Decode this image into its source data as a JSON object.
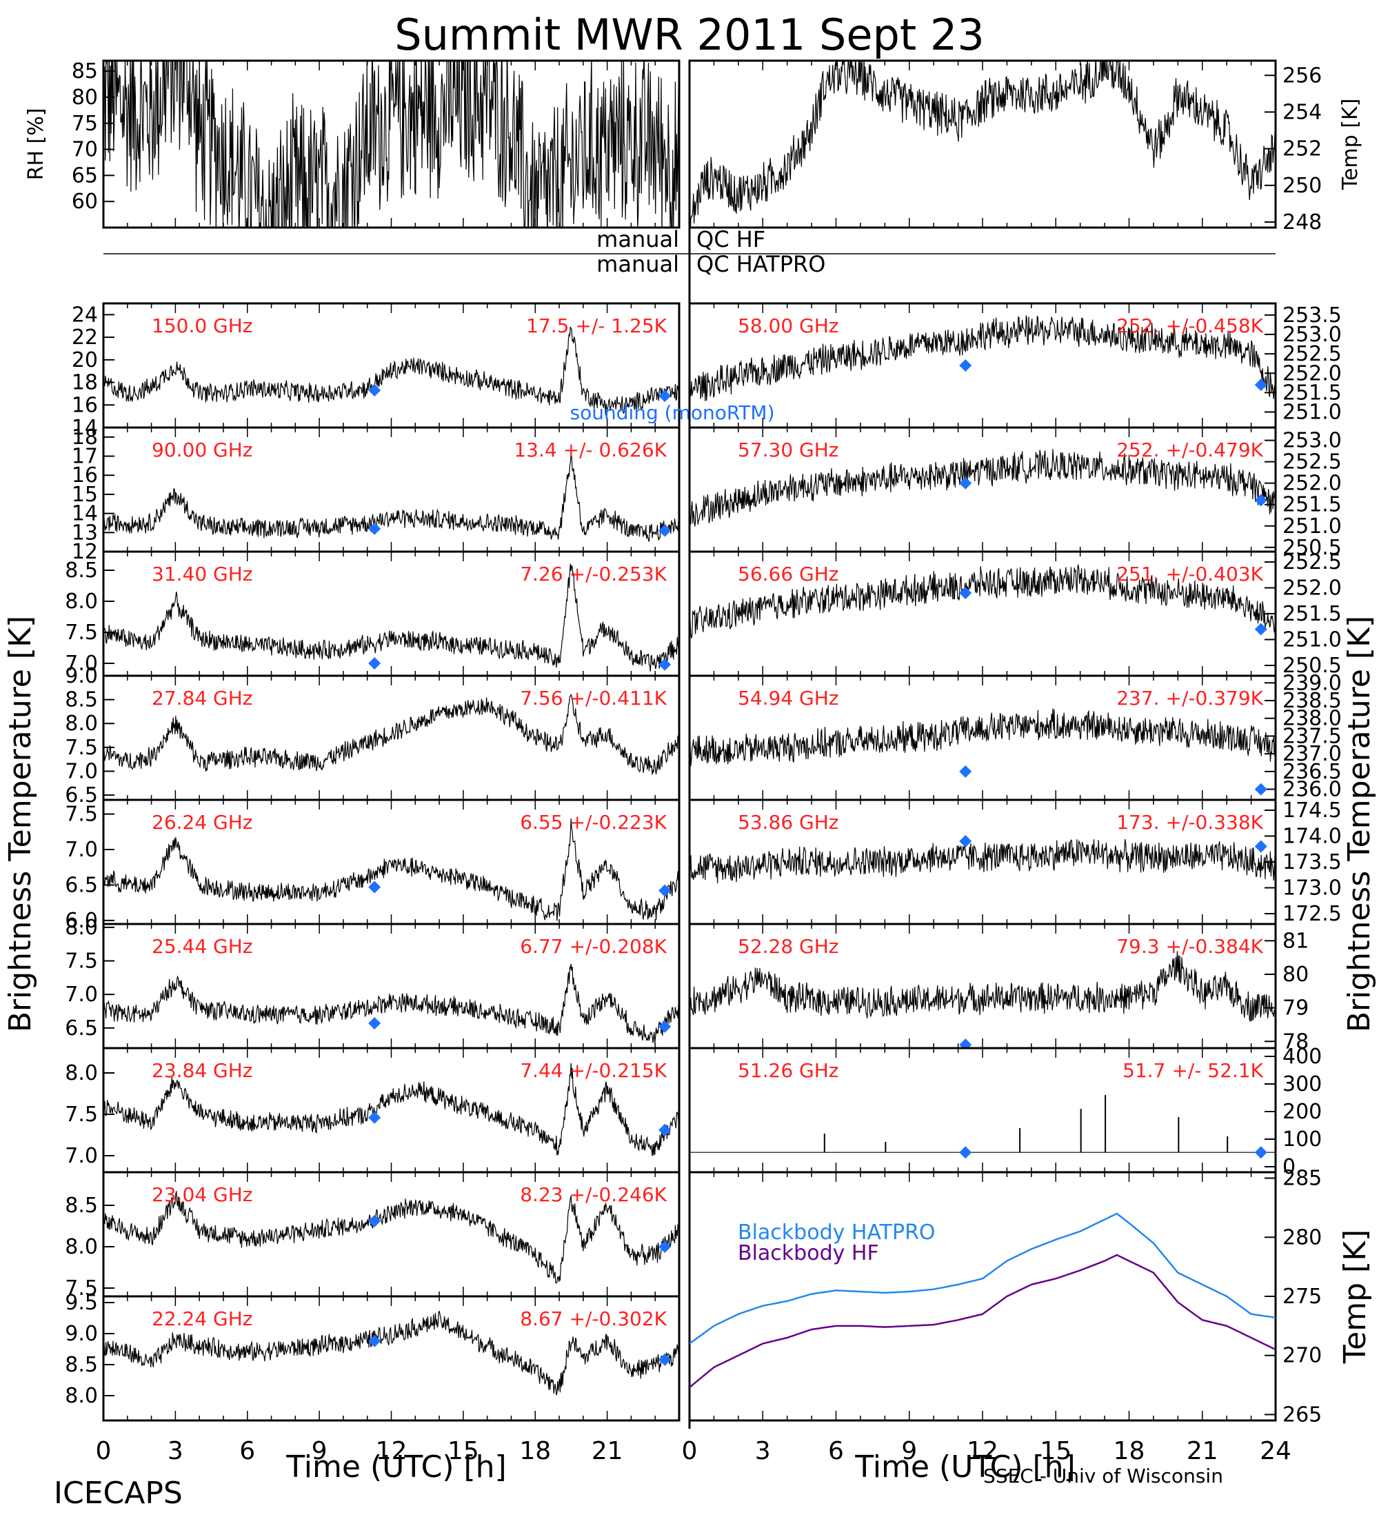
{
  "title": "Summit MWR 2011 Sept 23",
  "footer": {
    "left": "ICECAPS",
    "right": "SSEC - Univ of Wisconsin"
  },
  "qc": {
    "left_word": "manual",
    "hf": "QC HF",
    "hatpro": "QC HATPRO"
  },
  "x_axis": {
    "label": "Time (UTC) [h]",
    "left_ticks": [
      "0",
      "3",
      "6",
      "9",
      "12",
      "15",
      "18",
      "21"
    ],
    "right_ticks": [
      "0",
      "3",
      "6",
      "9",
      "12",
      "15",
      "18",
      "21",
      "24"
    ]
  },
  "brightness_label_left": "Brightness Temperature [K]",
  "brightness_label_right": "Brightness Temperature [K]",
  "colors": {
    "annotation": "#ff2020",
    "sounding": "#1e70ff",
    "hatpro_bb": "#2288ee",
    "hf_bb": "#660088"
  },
  "chart_data": [
    {
      "type": "line",
      "panel": "rh",
      "ylabel": "RH [%]",
      "ylim": [
        55,
        87
      ],
      "yticks": [
        "60",
        "65",
        "70",
        "75",
        "80",
        "85"
      ],
      "x": [
        0,
        1,
        2,
        2.5,
        3,
        3.5,
        4,
        5,
        6,
        7,
        8,
        9,
        10,
        11,
        12,
        13,
        14,
        15,
        16,
        17,
        17.5,
        18,
        19,
        20,
        21,
        22,
        23,
        24
      ],
      "y": [
        80,
        78,
        77,
        82,
        86,
        85,
        72,
        70,
        62,
        56,
        63,
        62,
        63,
        73,
        76,
        77,
        78,
        79,
        80,
        74,
        66,
        60,
        63,
        70,
        71,
        72,
        71,
        66
      ]
    },
    {
      "type": "line",
      "panel": "temp",
      "ylabel": "Temp [K]",
      "ylim": [
        247.7,
        256.8
      ],
      "yticks": [
        "248",
        "250",
        "252",
        "254",
        "256"
      ],
      "x": [
        0,
        0.5,
        1,
        2,
        3,
        4,
        5,
        5.5,
        6,
        7,
        8,
        9,
        10,
        11,
        12,
        13,
        14,
        15,
        16,
        17,
        17.5,
        18,
        19,
        19.5,
        20,
        21,
        22,
        23,
        24
      ],
      "y": [
        247.8,
        250,
        250.5,
        249.5,
        250,
        251,
        253,
        255.5,
        256,
        256,
        255,
        254.5,
        254,
        253.5,
        254.5,
        255,
        255,
        255,
        255.5,
        256.5,
        256,
        255.5,
        252,
        253,
        255,
        254,
        253,
        250,
        252
      ]
    },
    {
      "type": "line",
      "panel": "150.0 GHz",
      "freq": "150.0 GHz",
      "stats": "17.5 +/- 1.25K",
      "ylim": [
        14,
        25
      ],
      "yticks": [
        "14",
        "16",
        "18",
        "20",
        "22",
        "24"
      ],
      "x": [
        0,
        1,
        2,
        3,
        4,
        5,
        6,
        9,
        11,
        12,
        13,
        14,
        15,
        18,
        19,
        19.5,
        20,
        21,
        22,
        23,
        24
      ],
      "y": [
        18,
        17,
        17.5,
        19.5,
        17,
        17,
        17.5,
        17,
        17.5,
        19,
        19.5,
        19,
        18.5,
        17,
        16.5,
        23,
        17,
        16,
        16,
        17,
        17
      ],
      "sounding": [
        [
          11.3,
          17.3
        ],
        [
          23.4,
          16.8
        ]
      ],
      "sounding_label": "sounding (monoRTM)"
    },
    {
      "type": "line",
      "panel": "90.00 GHz",
      "freq": "90.00 GHz",
      "stats": "13.4 +/- 0.626K",
      "ylim": [
        12,
        18.5
      ],
      "yticks": [
        "12",
        "13",
        "14",
        "15",
        "16",
        "17",
        "18"
      ],
      "x": [
        0,
        1,
        2,
        3,
        4,
        5,
        9,
        11,
        12,
        15,
        18,
        19,
        19.5,
        20,
        21,
        22,
        23,
        24
      ],
      "y": [
        13.5,
        13.5,
        13.5,
        15,
        13.5,
        13.2,
        13.3,
        13.5,
        13.8,
        13.6,
        13.3,
        13,
        17,
        13,
        14,
        13,
        13,
        13.5
      ],
      "sounding": [
        [
          11.3,
          13.2
        ],
        [
          23.4,
          13.1
        ]
      ]
    },
    {
      "type": "line",
      "panel": "31.40 GHz",
      "freq": "31.40 GHz",
      "stats": "7.26 +/-0.253K",
      "ylim": [
        6.8,
        8.8
      ],
      "yticks": [
        "7.0",
        "7.5",
        "8.0",
        "8.5"
      ],
      "x": [
        0,
        1,
        2,
        3,
        4,
        6,
        9,
        11,
        12,
        15,
        18,
        19,
        19.5,
        20,
        21,
        22,
        23,
        24
      ],
      "y": [
        7.5,
        7.4,
        7.3,
        8.0,
        7.4,
        7.3,
        7.2,
        7.3,
        7.4,
        7.3,
        7.2,
        7.0,
        8.6,
        7.2,
        7.6,
        7.1,
        7.0,
        7.3
      ],
      "sounding": [
        [
          11.3,
          7.0
        ],
        [
          23.4,
          6.98
        ]
      ]
    },
    {
      "type": "line",
      "panel": "27.84 GHz",
      "freq": "27.84 GHz",
      "stats": "7.56 +/-0.411K",
      "ylim": [
        6.4,
        9.0
      ],
      "yticks": [
        "6.5",
        "7.0",
        "7.5",
        "8.0",
        "8.5",
        "9.0"
      ],
      "x": [
        0,
        1,
        2,
        3,
        4,
        6,
        9,
        11,
        12,
        13,
        14,
        15,
        16,
        17,
        18,
        19,
        19.5,
        20,
        21,
        22,
        23,
        24
      ],
      "y": [
        7.4,
        7.2,
        7.3,
        8.0,
        7.2,
        7.3,
        7.2,
        7.6,
        7.8,
        8.0,
        8.2,
        8.3,
        8.4,
        8.1,
        7.7,
        7.5,
        8.5,
        7.6,
        7.8,
        7.2,
        7.1,
        7.6
      ],
      "sounding": []
    },
    {
      "type": "line",
      "panel": "26.24 GHz",
      "freq": "26.24 GHz",
      "stats": "6.55 +/-0.223K",
      "ylim": [
        5.95,
        7.7
      ],
      "yticks": [
        "6.0",
        "6.5",
        "7.0",
        "7.5"
      ],
      "x": [
        0,
        1,
        2,
        3,
        4,
        6,
        9,
        11,
        12,
        15,
        18,
        19,
        19.5,
        20,
        21,
        22,
        23,
        24
      ],
      "y": [
        6.6,
        6.5,
        6.5,
        7.1,
        6.5,
        6.4,
        6.4,
        6.6,
        6.8,
        6.6,
        6.2,
        6.1,
        7.3,
        6.4,
        6.8,
        6.2,
        6.1,
        6.6
      ],
      "sounding": [
        [
          11.3,
          6.47
        ],
        [
          23.4,
          6.42
        ]
      ]
    },
    {
      "type": "line",
      "panel": "25.44 GHz",
      "freq": "25.44 GHz",
      "stats": "6.77 +/-0.208K",
      "ylim": [
        6.2,
        8.05
      ],
      "yticks": [
        "6.5",
        "7.0",
        "7.5",
        "8.0"
      ],
      "x": [
        0,
        1,
        2,
        3,
        4,
        6,
        9,
        11,
        12,
        15,
        18,
        19,
        19.5,
        20,
        21,
        22,
        23,
        24
      ],
      "y": [
        6.8,
        6.7,
        6.7,
        7.2,
        6.8,
        6.7,
        6.7,
        6.8,
        6.9,
        6.8,
        6.6,
        6.5,
        7.4,
        6.6,
        7.0,
        6.5,
        6.4,
        6.8
      ],
      "sounding": [
        [
          11.3,
          6.57
        ],
        [
          23.4,
          6.52
        ]
      ]
    },
    {
      "type": "line",
      "panel": "23.84 GHz",
      "freq": "23.84 GHz",
      "stats": "7.44 +/-0.215K",
      "ylim": [
        6.8,
        8.3
      ],
      "yticks": [
        "7.0",
        "7.5",
        "8.0"
      ],
      "x": [
        0,
        1,
        2,
        3,
        4,
        6,
        9,
        11,
        12,
        13,
        15,
        18,
        19,
        19.5,
        20,
        21,
        22,
        23,
        24
      ],
      "y": [
        7.6,
        7.5,
        7.4,
        7.9,
        7.5,
        7.4,
        7.4,
        7.5,
        7.7,
        7.8,
        7.6,
        7.3,
        7.1,
        8.0,
        7.3,
        7.8,
        7.2,
        7.1,
        7.5
      ],
      "sounding": [
        [
          11.3,
          7.46
        ],
        [
          23.4,
          7.31
        ]
      ]
    },
    {
      "type": "line",
      "panel": "23.04 GHz",
      "freq": "23.04 GHz",
      "stats": "8.23 +/-0.246K",
      "ylim": [
        7.4,
        8.9
      ],
      "yticks": [
        "7.5",
        "8.0",
        "8.5"
      ],
      "x": [
        0,
        1,
        2,
        3,
        4,
        6,
        9,
        11,
        12,
        13,
        15,
        18,
        19,
        19.5,
        20,
        21,
        22,
        23,
        24
      ],
      "y": [
        8.3,
        8.2,
        8.1,
        8.6,
        8.2,
        8.1,
        8.2,
        8.3,
        8.4,
        8.5,
        8.4,
        7.9,
        7.6,
        8.6,
        8.0,
        8.5,
        7.9,
        7.9,
        8.2
      ],
      "sounding": [
        [
          11.3,
          8.31
        ],
        [
          23.4,
          8.0
        ]
      ]
    },
    {
      "type": "line",
      "panel": "22.24 GHz",
      "freq": "22.24 GHz",
      "stats": "8.67 +/-0.302K",
      "ylim": [
        7.6,
        9.6
      ],
      "yticks": [
        "8.0",
        "8.5",
        "9.0",
        "9.5"
      ],
      "x": [
        0,
        1,
        2,
        3,
        4,
        6,
        9,
        11,
        12,
        13,
        14,
        15,
        18,
        19,
        19.5,
        20,
        21,
        22,
        23,
        24
      ],
      "y": [
        8.8,
        8.7,
        8.5,
        8.9,
        8.8,
        8.7,
        8.8,
        8.9,
        9.0,
        9.1,
        9.2,
        9.0,
        8.4,
        8.1,
        8.9,
        8.6,
        8.9,
        8.4,
        8.5,
        8.7
      ],
      "sounding": [
        [
          11.3,
          8.88
        ],
        [
          23.4,
          8.58
        ]
      ]
    },
    {
      "type": "line",
      "panel": "58.00 GHz",
      "freq": "58.00 GHz",
      "stats": "252. +/-0.458K",
      "ylim": [
        250.6,
        253.8
      ],
      "yticks": [
        "251.0",
        "251.5",
        "252.0",
        "252.5",
        "253.0",
        "253.5"
      ],
      "x": [
        0,
        2,
        4,
        6,
        8,
        10,
        11,
        12,
        14,
        16,
        18,
        20,
        22,
        23,
        24
      ],
      "y": [
        251.6,
        251.9,
        252.2,
        252.4,
        252.6,
        252.8,
        252.8,
        253,
        253.1,
        253.1,
        252.9,
        252.8,
        252.7,
        252.5,
        251.5
      ],
      "sounding": [
        [
          11.3,
          252.2
        ],
        [
          23.4,
          251.7
        ]
      ]
    },
    {
      "type": "line",
      "panel": "57.30 GHz",
      "freq": "57.30 GHz",
      "stats": "252. +/-0.479K",
      "ylim": [
        250.4,
        253.3
      ],
      "yticks": [
        "250.5",
        "251.0",
        "251.5",
        "252.0",
        "252.5",
        "253.0"
      ],
      "x": [
        0,
        2,
        4,
        6,
        8,
        10,
        11,
        12,
        14,
        16,
        18,
        20,
        22,
        23,
        24
      ],
      "y": [
        251.3,
        251.6,
        251.9,
        252.0,
        252.1,
        252.2,
        252.2,
        252.3,
        252.4,
        252.4,
        252.3,
        252.2,
        252.1,
        252.0,
        251.5
      ],
      "sounding": [
        [
          11.3,
          252.0
        ],
        [
          23.4,
          251.6
        ]
      ]
    },
    {
      "type": "line",
      "panel": "56.66 GHz",
      "freq": "56.66 GHz",
      "stats": "251. +/-0.403K",
      "ylim": [
        250.3,
        252.7
      ],
      "yticks": [
        "250.5",
        "251.0",
        "251.5",
        "252.0",
        "252.5"
      ],
      "x": [
        0,
        2,
        4,
        6,
        8,
        10,
        11,
        12,
        14,
        16,
        18,
        20,
        22,
        23,
        24
      ],
      "y": [
        251.3,
        251.5,
        251.7,
        251.8,
        251.9,
        252.0,
        252.0,
        252.1,
        252.1,
        252.2,
        252.0,
        251.9,
        251.8,
        251.6,
        251.2
      ],
      "sounding": [
        [
          11.3,
          251.9
        ],
        [
          23.4,
          251.2
        ]
      ]
    },
    {
      "type": "line",
      "panel": "54.94 GHz",
      "freq": "54.94 GHz",
      "stats": "237. +/-0.379K",
      "ylim": [
        235.7,
        239.2
      ],
      "yticks": [
        "236.0",
        "236.5",
        "237.0",
        "237.5",
        "238.0",
        "238.5",
        "239.0"
      ],
      "x": [
        0,
        2,
        4,
        6,
        8,
        10,
        11,
        12,
        14,
        16,
        18,
        20,
        22,
        23,
        24
      ],
      "y": [
        237.1,
        237.1,
        237.2,
        237.3,
        237.4,
        237.5,
        237.6,
        237.7,
        237.8,
        237.8,
        237.7,
        237.6,
        237.5,
        237.4,
        237.2
      ],
      "sounding": [
        [
          11.3,
          236.5
        ],
        [
          23.4,
          236.0
        ]
      ]
    },
    {
      "type": "line",
      "panel": "53.86 GHz",
      "freq": "53.86 GHz",
      "stats": "173. +/-0.338K",
      "ylim": [
        172.3,
        174.7
      ],
      "yticks": [
        "172.5",
        "173.0",
        "173.5",
        "174.0",
        "174.5"
      ],
      "x": [
        0,
        2,
        4,
        6,
        8,
        10,
        11,
        12,
        14,
        16,
        18,
        20,
        22,
        23,
        24
      ],
      "y": [
        173.4,
        173.4,
        173.5,
        173.5,
        173.5,
        173.6,
        173.6,
        173.6,
        173.6,
        173.7,
        173.6,
        173.6,
        173.6,
        173.5,
        173.4
      ],
      "sounding": [
        [
          11.3,
          173.9
        ],
        [
          23.4,
          173.8
        ]
      ]
    },
    {
      "type": "line",
      "panel": "52.28 GHz",
      "freq": "52.28 GHz",
      "stats": "79.3 +/-0.384K",
      "ylim": [
        77.8,
        81.5
      ],
      "yticks": [
        "78",
        "79",
        "80",
        "81"
      ],
      "x": [
        0,
        1,
        2,
        3,
        4,
        6,
        9,
        12,
        15,
        18,
        19,
        20,
        21,
        22,
        23,
        24
      ],
      "y": [
        79.2,
        79.3,
        79.6,
        79.9,
        79.3,
        79.2,
        79.2,
        79.3,
        79.3,
        79.3,
        79.5,
        80.3,
        79.4,
        79.6,
        79.0,
        79.2
      ],
      "sounding": [
        [
          11.3,
          77.9
        ]
      ]
    },
    {
      "type": "line",
      "panel": "51.26 GHz",
      "freq": "51.26 GHz",
      "stats": "51.7 +/- 52.1K",
      "ylim": [
        -20,
        430
      ],
      "yticks": [
        "0",
        "100",
        "200",
        "300",
        "400"
      ],
      "x": [
        0,
        4,
        8,
        12,
        16,
        20,
        24
      ],
      "y": [
        52,
        52,
        52,
        52,
        52,
        52,
        52
      ],
      "sounding": [
        [
          11.3,
          52
        ],
        [
          23.4,
          52
        ]
      ]
    },
    {
      "type": "line",
      "panel": "blackbody",
      "ylabel": "Temp [K]",
      "ylim": [
        264.5,
        285.5
      ],
      "yticks": [
        "265",
        "270",
        "275",
        "280",
        "285"
      ],
      "x": [
        0,
        1,
        2,
        3,
        4,
        5,
        6,
        7,
        8,
        9,
        10,
        11,
        12,
        13,
        14,
        15,
        16,
        17,
        17.5,
        18,
        19,
        20,
        21,
        22,
        23,
        24
      ],
      "series": [
        {
          "name": "Blackbody HATPRO",
          "values": [
            271,
            272.5,
            273.5,
            274.2,
            274.6,
            275.2,
            275.5,
            275.4,
            275.3,
            275.4,
            275.6,
            276,
            276.5,
            278,
            279,
            279.8,
            280.5,
            281.5,
            282,
            281.2,
            279.5,
            277,
            276,
            275,
            273.5,
            273.2
          ]
        },
        {
          "name": "Blackbody HF",
          "values": [
            267.3,
            269,
            270,
            271,
            271.5,
            272.2,
            272.5,
            272.5,
            272.4,
            272.5,
            272.6,
            273,
            273.5,
            275,
            276,
            276.5,
            277.2,
            278,
            278.5,
            278,
            277,
            274.5,
            273,
            272.5,
            271.5,
            270.5
          ]
        }
      ]
    }
  ]
}
